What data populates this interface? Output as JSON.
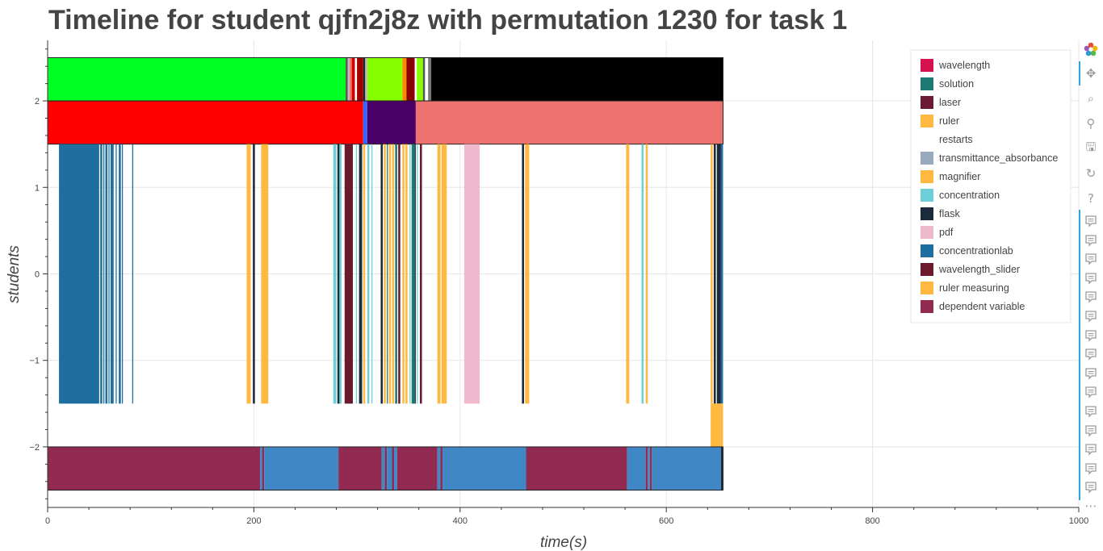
{
  "chart_data": {
    "type": "timeline",
    "title": "Timeline for student qjfn2j8z with permutation 1230 for task 1",
    "xlabel": "time(s)",
    "ylabel": "students",
    "xlim": [
      0,
      1000
    ],
    "ylim": [
      -2.7,
      2.7
    ],
    "xticks": [
      0,
      200,
      400,
      600,
      800,
      1000
    ],
    "xtick_labels": [
      "0",
      "200",
      "400",
      "600",
      "800",
      "1000"
    ],
    "yticks": [
      2,
      1,
      0,
      -1,
      -2
    ],
    "ytick_labels": [
      "2",
      "1",
      "0",
      "−1",
      "−2"
    ],
    "grid": true,
    "legend_position": "top-right",
    "legend": [
      {
        "label": "wavelength",
        "color": "#d5124d"
      },
      {
        "label": "solution",
        "color": "#1d7a72"
      },
      {
        "label": "laser",
        "color": "#6b1a33"
      },
      {
        "label": "ruler",
        "color": "#ffb840"
      },
      {
        "label": "restarts",
        "color": ""
      },
      {
        "label": "transmittance_absorbance",
        "color": "#9aa9bd"
      },
      {
        "label": "magnifier",
        "color": "#ffb840"
      },
      {
        "label": "concentration",
        "color": "#6dcfd8"
      },
      {
        "label": "flask",
        "color": "#1c2b3c"
      },
      {
        "label": "pdf",
        "color": "#f0b8cc"
      },
      {
        "label": "concentrationlab",
        "color": "#1e6f9f"
      },
      {
        "label": "wavelength_slider",
        "color": "#6b1a2d"
      },
      {
        "label": "ruler measuring",
        "color": "#ffb840"
      },
      {
        "label": "dependent variable",
        "color": "#922b52"
      }
    ],
    "rows": [
      {
        "y_range": [
          2,
          2.5
        ],
        "segments": [
          {
            "start": 0,
            "end": 289,
            "color": "#00ff22"
          },
          {
            "start": 289,
            "end": 291,
            "color": "#555555"
          },
          {
            "start": 291,
            "end": 293,
            "color": "#bbbbbb"
          },
          {
            "start": 293,
            "end": 295,
            "color": "#ff6666"
          },
          {
            "start": 295,
            "end": 298,
            "color": "#cc0000"
          },
          {
            "start": 298,
            "end": 300,
            "color": "#ffffff"
          },
          {
            "start": 300,
            "end": 306,
            "color": "#a00000"
          },
          {
            "start": 306,
            "end": 308,
            "color": "#222222"
          },
          {
            "start": 308,
            "end": 310,
            "color": "#bbbbbb"
          },
          {
            "start": 310,
            "end": 344,
            "color": "#88ff00"
          },
          {
            "start": 344,
            "end": 348,
            "color": "#ff8800"
          },
          {
            "start": 348,
            "end": 356,
            "color": "#8a0000"
          },
          {
            "start": 356,
            "end": 358,
            "color": "#ffffff"
          },
          {
            "start": 358,
            "end": 364,
            "color": "#88ff00"
          },
          {
            "start": 364,
            "end": 366,
            "color": "#555555"
          },
          {
            "start": 366,
            "end": 369,
            "color": "#ffffff"
          },
          {
            "start": 369,
            "end": 372,
            "color": "#777777"
          },
          {
            "start": 372,
            "end": 655,
            "color": "#000000"
          }
        ]
      },
      {
        "y_range": [
          1.5,
          2
        ],
        "segments": [
          {
            "start": 0,
            "end": 306,
            "color": "#ff0000"
          },
          {
            "start": 306,
            "end": 310,
            "color": "#3366ff"
          },
          {
            "start": 310,
            "end": 357,
            "color": "#4a0066"
          },
          {
            "start": 357,
            "end": 655,
            "color": "#ee7370"
          }
        ]
      },
      {
        "y_range": [
          -1.5,
          1.5
        ],
        "segments": [
          {
            "start": 11,
            "end": 50,
            "color": "#1e6f9f"
          },
          {
            "start": 51,
            "end": 53,
            "color": "#1e6f9f"
          },
          {
            "start": 54,
            "end": 55,
            "color": "#1e6f9f"
          },
          {
            "start": 56,
            "end": 58,
            "color": "#1e6f9f"
          },
          {
            "start": 59,
            "end": 60,
            "color": "#1e6f9f"
          },
          {
            "start": 61,
            "end": 64,
            "color": "#1e6f9f"
          },
          {
            "start": 66,
            "end": 67,
            "color": "#1e6f9f"
          },
          {
            "start": 69,
            "end": 71,
            "color": "#1e6f9f"
          },
          {
            "start": 72,
            "end": 73,
            "color": "#1e6f9f"
          },
          {
            "start": 82,
            "end": 83,
            "color": "#1e6f9f"
          },
          {
            "start": 193,
            "end": 197,
            "color": "#ffb840"
          },
          {
            "start": 199,
            "end": 201,
            "color": "#1c2b3c"
          },
          {
            "start": 207,
            "end": 214,
            "color": "#ffb840"
          },
          {
            "start": 277,
            "end": 280,
            "color": "#6dcfd8"
          },
          {
            "start": 281,
            "end": 283,
            "color": "#1c2b3c"
          },
          {
            "start": 283,
            "end": 285,
            "color": "#6dcfd8"
          },
          {
            "start": 288,
            "end": 296,
            "color": "#6b1a2d"
          },
          {
            "start": 299,
            "end": 300,
            "color": "#6dcfd8"
          },
          {
            "start": 302,
            "end": 305,
            "color": "#1c2b3c"
          },
          {
            "start": 306,
            "end": 308,
            "color": "#ffb840"
          },
          {
            "start": 310,
            "end": 312,
            "color": "#6dcfd8"
          },
          {
            "start": 314,
            "end": 315,
            "color": "#6dcfd8"
          },
          {
            "start": 323,
            "end": 325,
            "color": "#1c2b3c"
          },
          {
            "start": 326,
            "end": 328,
            "color": "#ffb840"
          },
          {
            "start": 329,
            "end": 330,
            "color": "#1d7a72"
          },
          {
            "start": 331,
            "end": 333,
            "color": "#ffb840"
          },
          {
            "start": 334,
            "end": 336,
            "color": "#ffb840"
          },
          {
            "start": 337,
            "end": 339,
            "color": "#1d7a72"
          },
          {
            "start": 340,
            "end": 342,
            "color": "#6b1a2d"
          },
          {
            "start": 344,
            "end": 346,
            "color": "#ffb840"
          },
          {
            "start": 347,
            "end": 349,
            "color": "#ffb840"
          },
          {
            "start": 351,
            "end": 352,
            "color": "#6dcfd8"
          },
          {
            "start": 353,
            "end": 356,
            "color": "#1d7a72"
          },
          {
            "start": 356,
            "end": 357,
            "color": "#1c2b3c"
          },
          {
            "start": 358,
            "end": 359,
            "color": "#6dcfd8"
          },
          {
            "start": 361,
            "end": 363,
            "color": "#6b1a2d"
          },
          {
            "start": 378,
            "end": 381,
            "color": "#ffb840"
          },
          {
            "start": 382,
            "end": 387,
            "color": "#ffb840"
          },
          {
            "start": 404,
            "end": 419,
            "color": "#f0b8cc"
          },
          {
            "start": 460,
            "end": 462,
            "color": "#1c2b3c"
          },
          {
            "start": 463,
            "end": 467,
            "color": "#ffb840"
          },
          {
            "start": 561,
            "end": 564,
            "color": "#ffb840"
          },
          {
            "start": 576,
            "end": 578,
            "color": "#6dcfd8"
          },
          {
            "start": 580,
            "end": 582,
            "color": "#ffb840"
          },
          {
            "start": 643,
            "end": 645,
            "color": "#ffb840"
          },
          {
            "start": 646,
            "end": 648,
            "color": "#1c2b3c"
          },
          {
            "start": 649,
            "end": 653,
            "color": "#1c2b3c"
          },
          {
            "start": 653,
            "end": 655,
            "color": "#1e6f9f"
          }
        ]
      },
      {
        "y_range": [
          -2,
          -1.5
        ],
        "segments": [
          {
            "start": 643,
            "end": 655,
            "color": "#ffb840"
          }
        ]
      },
      {
        "y_range": [
          -2.5,
          -2
        ],
        "segments": [
          {
            "start": 0,
            "end": 206,
            "color": "#922b52"
          },
          {
            "start": 206,
            "end": 208,
            "color": "#3f88c5"
          },
          {
            "start": 208,
            "end": 210,
            "color": "#922b52"
          },
          {
            "start": 210,
            "end": 282,
            "color": "#3f88c5"
          },
          {
            "start": 282,
            "end": 324,
            "color": "#922b52"
          },
          {
            "start": 324,
            "end": 327,
            "color": "#3f88c5"
          },
          {
            "start": 327,
            "end": 329,
            "color": "#922b52"
          },
          {
            "start": 329,
            "end": 334,
            "color": "#3f88c5"
          },
          {
            "start": 334,
            "end": 336,
            "color": "#922b52"
          },
          {
            "start": 336,
            "end": 339,
            "color": "#3f88c5"
          },
          {
            "start": 339,
            "end": 378,
            "color": "#922b52"
          },
          {
            "start": 378,
            "end": 381,
            "color": "#3f88c5"
          },
          {
            "start": 381,
            "end": 383,
            "color": "#922b52"
          },
          {
            "start": 383,
            "end": 464,
            "color": "#3f88c5"
          },
          {
            "start": 464,
            "end": 562,
            "color": "#922b52"
          },
          {
            "start": 562,
            "end": 580,
            "color": "#3f88c5"
          },
          {
            "start": 580,
            "end": 582,
            "color": "#922b52"
          },
          {
            "start": 582,
            "end": 584,
            "color": "#3f88c5"
          },
          {
            "start": 584,
            "end": 586,
            "color": "#922b52"
          },
          {
            "start": 586,
            "end": 653,
            "color": "#3f88c5"
          },
          {
            "start": 653,
            "end": 655,
            "color": "#1c2b3c"
          }
        ]
      }
    ]
  },
  "toolbar": {
    "logo_icon": "bokeh-logo-icon",
    "tools": [
      {
        "name": "pan-icon",
        "glyph": "✥"
      },
      {
        "name": "box-zoom-icon",
        "glyph": "⌕"
      },
      {
        "name": "wheel-zoom-icon",
        "glyph": "⚲"
      },
      {
        "name": "save-icon",
        "glyph": "🖫"
      },
      {
        "name": "reset-icon",
        "glyph": "↻"
      },
      {
        "name": "help-icon",
        "glyph": "?"
      }
    ],
    "hover_tool_count": 15,
    "more_glyph": "⋯"
  }
}
